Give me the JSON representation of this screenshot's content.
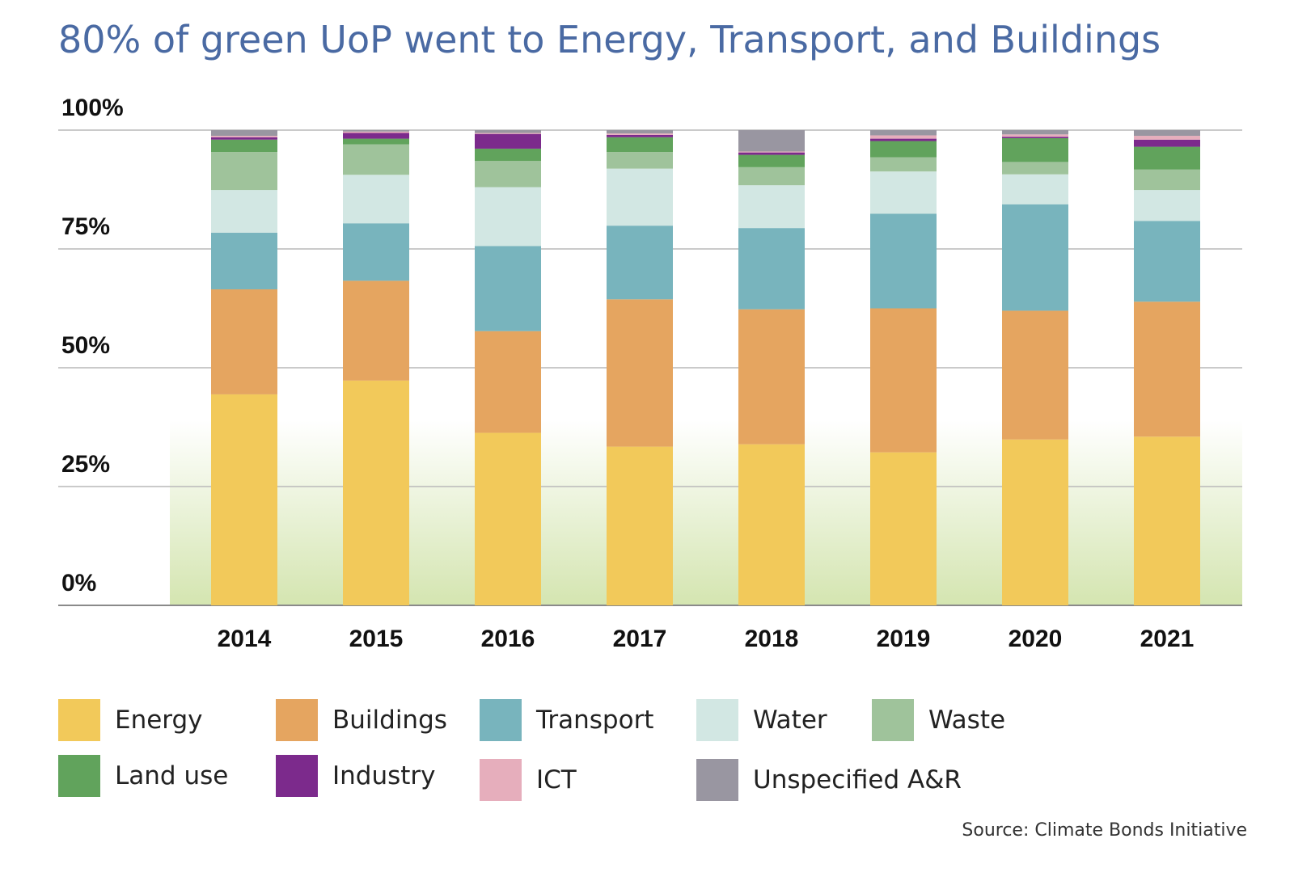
{
  "chart_data": {
    "type": "bar",
    "stacked": true,
    "title": "80% of green UoP went to Energy, Transport, and Buildings",
    "categories": [
      "2014",
      "2015",
      "2016",
      "2017",
      "2018",
      "2019",
      "2020",
      "2021"
    ],
    "y_ticks": [
      "0%",
      "25%",
      "50%",
      "75%",
      "100%"
    ],
    "ylim": [
      0,
      100
    ],
    "grid": true,
    "legend_position": "bottom",
    "series": [
      {
        "name": "Energy",
        "color": "#f2c95a",
        "values": [
          44.4,
          47.3,
          36.3,
          33.4,
          33.9,
          32.2,
          34.9,
          35.5
        ]
      },
      {
        "name": "Buildings",
        "color": "#e5a560",
        "values": [
          22.1,
          21.0,
          21.4,
          31.0,
          28.4,
          30.3,
          27.1,
          28.4
        ]
      },
      {
        "name": "Transport",
        "color": "#78b4bd",
        "values": [
          11.9,
          12.1,
          17.9,
          15.5,
          17.1,
          19.9,
          22.4,
          17.0
        ]
      },
      {
        "name": "Water",
        "color": "#d2e7e3",
        "values": [
          9.0,
          10.2,
          12.4,
          12.0,
          9.0,
          8.9,
          6.3,
          6.5
        ]
      },
      {
        "name": "Waste",
        "color": "#9fc39b",
        "values": [
          8.0,
          6.4,
          5.5,
          3.5,
          3.8,
          3.0,
          2.6,
          4.3
        ]
      },
      {
        "name": "Land use",
        "color": "#61a35c",
        "values": [
          2.6,
          1.2,
          2.6,
          3.1,
          2.6,
          3.4,
          5.0,
          4.8
        ]
      },
      {
        "name": "Industry",
        "color": "#7c2a8c",
        "values": [
          0.5,
          1.2,
          3.1,
          0.5,
          0.5,
          0.5,
          0.3,
          1.5
        ]
      },
      {
        "name": "ICT",
        "color": "#e6aebc",
        "values": [
          0.3,
          0.3,
          0.2,
          0.3,
          0.2,
          0.7,
          0.5,
          0.8
        ]
      },
      {
        "name": "Unspecified A&R",
        "color": "#9996a1",
        "values": [
          1.2,
          0.3,
          0.6,
          0.7,
          4.5,
          1.1,
          0.9,
          1.2
        ]
      }
    ],
    "source": "Source: Climate Bonds Initiative"
  }
}
